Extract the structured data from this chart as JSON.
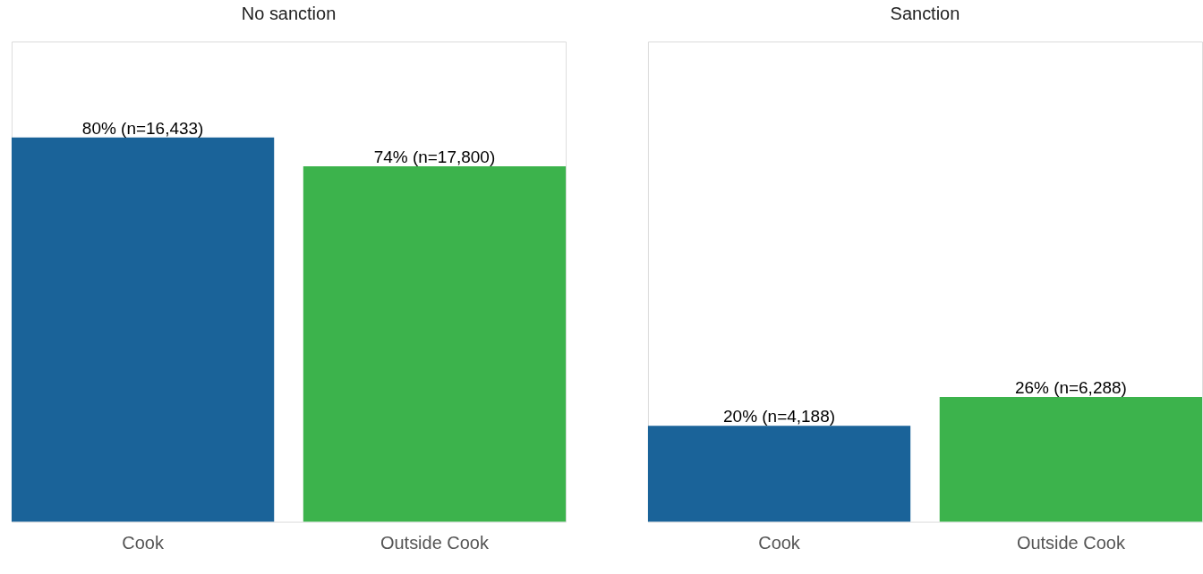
{
  "chart_data": [
    {
      "type": "bar",
      "title": "No sanction",
      "categories": [
        "Cook",
        "Outside Cook"
      ],
      "values": [
        80,
        74
      ],
      "colors": [
        "#1a6399",
        "#3cb34c"
      ],
      "value_labels": [
        "80% (n=16,433)",
        "74% (n=17,800)"
      ],
      "ylim": [
        0,
        100
      ]
    },
    {
      "type": "bar",
      "title": "Sanction",
      "categories": [
        "Cook",
        "Outside Cook"
      ],
      "values": [
        20,
        26
      ],
      "colors": [
        "#1a6399",
        "#3cb34c"
      ],
      "value_labels": [
        "20% (n=4,188)",
        "26% (n=6,288)"
      ],
      "ylim": [
        0,
        100
      ]
    }
  ]
}
